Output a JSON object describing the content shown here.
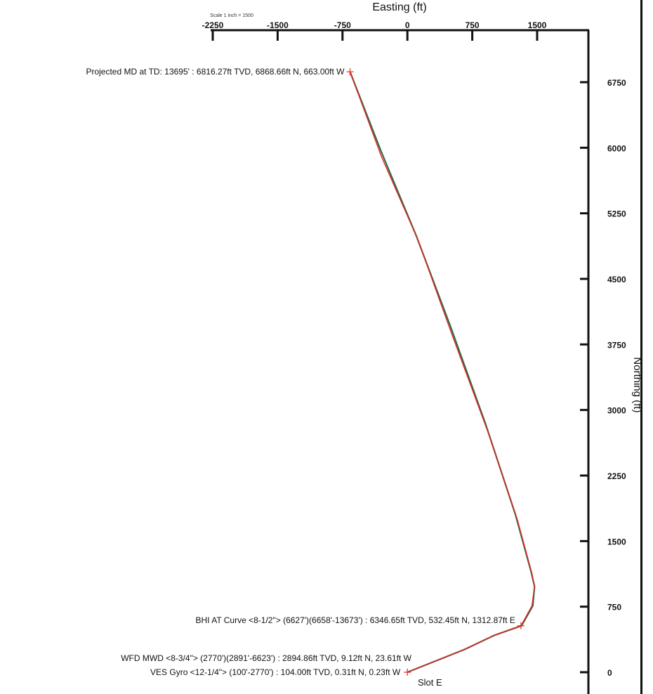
{
  "header": {
    "scale_note": "Scale 1 inch = 1500"
  },
  "chart_data": {
    "type": "line",
    "xlabel": "Easting (ft)",
    "ylabel": "Northing (ft)",
    "xlim": [
      -2250,
      1500
    ],
    "ylim": [
      0,
      6750
    ],
    "x_ticks": [
      -2250,
      -1500,
      -750,
      0,
      750,
      1500
    ],
    "y_ticks": [
      0,
      750,
      1500,
      2250,
      3000,
      3750,
      4500,
      5250,
      6000,
      6750
    ],
    "series": [
      {
        "color": "#2f6b4a",
        "x": [
          0,
          660,
          1000,
          1320,
          1450,
          1470,
          1430,
          1250,
          900,
          500,
          100,
          -300,
          -663
        ],
        "y": [
          0,
          260,
          420,
          532,
          760,
          980,
          1150,
          1800,
          2850,
          3950,
          5000,
          5950,
          6869
        ]
      },
      {
        "color": "#e8251f",
        "x": [
          0,
          660,
          1000,
          1313,
          1440,
          1470,
          1440,
          1270,
          930,
          520,
          120,
          -300,
          -663
        ],
        "y": [
          0,
          260,
          420,
          532,
          760,
          980,
          1130,
          1750,
          2750,
          3850,
          4950,
          5900,
          6869
        ]
      }
    ],
    "annotations": [
      {
        "text": "Projected MD at TD: 13695' : 6816.27ft TVD, 6868.66ft N, 663.00ft W",
        "x": -663,
        "y": 6869
      },
      {
        "text": "BHI AT Curve <8-1/2\"> (6627')(6658'-13673') : 6346.65ft TVD, 532.45ft N, 1312.87ft E",
        "x": 1313,
        "y": 532
      },
      {
        "text": "WFD MWD <8-3/4\"> (2770')(2891'-6623') : 2894.86ft TVD, 9.12ft N, 23.61ft W",
        "x": 0,
        "y": 9
      },
      {
        "text": "VES Gyro <12-1/4\"> (100'-2770') : 104.00ft TVD, 0.31ft N, 0.23ft W",
        "x": 0,
        "y": 0
      },
      {
        "text": "Slot E",
        "x": 0,
        "y": 0
      }
    ]
  }
}
